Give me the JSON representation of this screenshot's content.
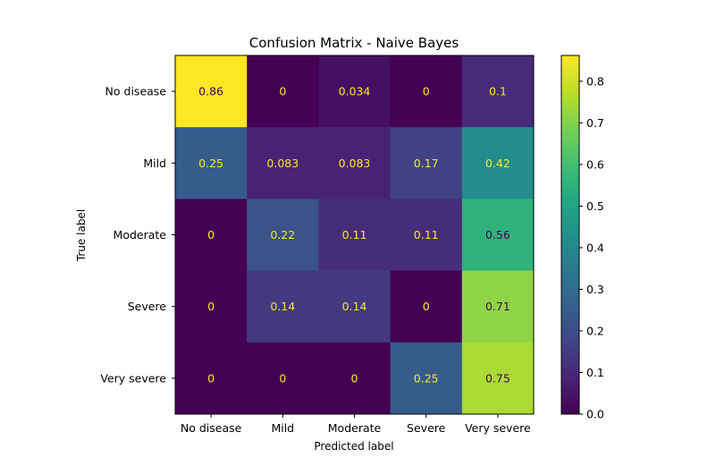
{
  "chart_data": {
    "type": "heatmap",
    "title": "Confusion Matrix - Naive Bayes",
    "xlabel": "Predicted label",
    "ylabel": "True label",
    "x_categories": [
      "No disease",
      "Mild",
      "Moderate",
      "Severe",
      "Very severe"
    ],
    "y_categories": [
      "No disease",
      "Mild",
      "Moderate",
      "Severe",
      "Very severe"
    ],
    "cell_labels": [
      [
        "0.86",
        "0",
        "0.034",
        "0",
        "0.1"
      ],
      [
        "0.25",
        "0.083",
        "0.083",
        "0.17",
        "0.42"
      ],
      [
        "0",
        "0.22",
        "0.11",
        "0.11",
        "0.56"
      ],
      [
        "0",
        "0.14",
        "0.14",
        "0",
        "0.71"
      ],
      [
        "0",
        "0",
        "0",
        "0.25",
        "0.75"
      ]
    ],
    "values": [
      [
        0.862,
        0.0,
        0.034,
        0.0,
        0.103
      ],
      [
        0.25,
        0.083,
        0.083,
        0.167,
        0.417
      ],
      [
        0.0,
        0.222,
        0.111,
        0.111,
        0.556
      ],
      [
        0.0,
        0.143,
        0.143,
        0.0,
        0.714
      ],
      [
        0.0,
        0.0,
        0.0,
        0.25,
        0.75
      ]
    ],
    "colormap": "viridis",
    "colorbar": {
      "range": [
        0,
        0.862
      ],
      "ticks": [
        0.0,
        0.1,
        0.2,
        0.3,
        0.4,
        0.5,
        0.6,
        0.7,
        0.8
      ],
      "tick_labels": [
        "0.0",
        "0.1",
        "0.2",
        "0.3",
        "0.4",
        "0.5",
        "0.6",
        "0.7",
        "0.8"
      ]
    },
    "text_colors": {
      "on_dark": "#fde725",
      "on_light": "#440154"
    }
  }
}
